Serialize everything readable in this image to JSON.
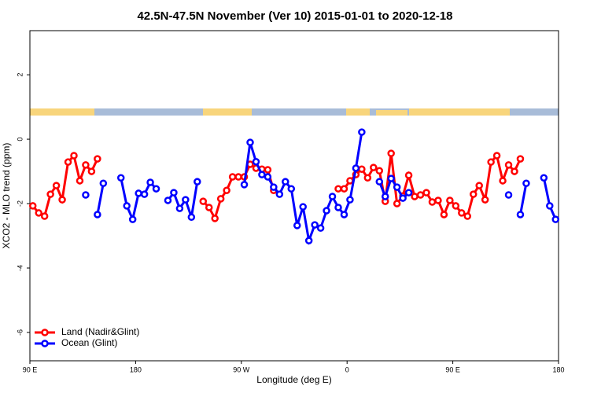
{
  "chart_data": {
    "type": "line",
    "title": "42.5N-47.5N November (Ver 10)   2015-01-01 to 2020-12-18",
    "x_label": "Longitude (deg E)",
    "y_label": "XCO2 - MLO trend (ppm)",
    "xlim": [
      90,
      540
    ],
    "ylim": [
      -6.88,
      3.37
    ],
    "xticks": [
      {
        "value": 90,
        "label": "90 E"
      },
      180,
      {
        "value": 270,
        "label": "90 W"
      },
      {
        "value": 360,
        "label": "0"
      },
      {
        "value": 450,
        "label": "90 E"
      },
      {
        "value": 540,
        "label": "180"
      }
    ],
    "yticks": [
      -6,
      -4,
      -2,
      0,
      2
    ],
    "legend": "bottom-left",
    "x": [
      92.5,
      97.5,
      102.5,
      107.5,
      112.5,
      117.5,
      122.5,
      127.5,
      132.5,
      137.5,
      142.5,
      147.5,
      152.5,
      157.5,
      162.5,
      167.5,
      172.5,
      177.5,
      182.5,
      187.5,
      192.5,
      197.5,
      202.5,
      207.5,
      212.5,
      217.5,
      222.5,
      227.5,
      232.5,
      237.5,
      242.5,
      247.5,
      252.5,
      257.5,
      262.5,
      267.5,
      272.5,
      277.5,
      282.5,
      287.5,
      292.5,
      297.5,
      302.5,
      307.5,
      312.5,
      317.5,
      322.5,
      327.5,
      332.5,
      337.5,
      342.5,
      347.5,
      352.5,
      357.5,
      362.5,
      367.5,
      372.5,
      377.5,
      382.5,
      387.5,
      392.5,
      397.5,
      402.5,
      407.5,
      412.5,
      417.5,
      422.5,
      427.5,
      432.5,
      437.5,
      442.5,
      447.5,
      452.5,
      457.5,
      462.5,
      467.5,
      472.5,
      477.5,
      482.5,
      487.5,
      492.5,
      497.5,
      502.5,
      507.5,
      512.5,
      517.5,
      522.5,
      527.5,
      532.5,
      537.5
    ],
    "series": [
      {
        "name": "Land (Nadir&Glint)",
        "color": "#ff0000",
        "values": [
          -2.07,
          -2.29,
          -2.39,
          -1.71,
          -1.44,
          -1.88,
          -0.71,
          -0.51,
          -1.29,
          -0.8,
          -1.0,
          -0.61,
          null,
          null,
          null,
          null,
          null,
          null,
          null,
          null,
          null,
          null,
          null,
          null,
          null,
          null,
          null,
          null,
          null,
          -1.93,
          -2.12,
          -2.46,
          -1.85,
          -1.59,
          -1.17,
          -1.17,
          -1.17,
          -0.78,
          -0.9,
          -0.93,
          -0.95,
          -1.59,
          null,
          null,
          null,
          null,
          null,
          null,
          null,
          null,
          null,
          null,
          -1.54,
          -1.54,
          -1.29,
          -1.1,
          -0.93,
          -1.2,
          -0.88,
          -0.98,
          -1.93,
          -0.44,
          -2.0,
          -1.76,
          -1.12,
          -1.78,
          -1.73,
          -1.66,
          -1.95,
          -1.9,
          -2.34,
          -1.9,
          -2.07,
          -2.29,
          -2.39,
          -1.71,
          -1.44,
          -1.88,
          -0.71,
          -0.51,
          -1.29,
          -0.8,
          -1.0,
          -0.61,
          null,
          null,
          null,
          null,
          null,
          null
        ]
      },
      {
        "name": "Ocean (Glint)",
        "color": "#0000ff",
        "values": [
          null,
          null,
          null,
          null,
          null,
          null,
          null,
          null,
          null,
          -1.73,
          null,
          -2.34,
          -1.37,
          null,
          null,
          -1.2,
          -2.07,
          -2.49,
          -1.68,
          -1.71,
          -1.34,
          -1.54,
          null,
          -1.9,
          -1.66,
          -2.15,
          -1.88,
          -2.42,
          -1.32,
          null,
          null,
          null,
          null,
          null,
          null,
          null,
          -1.41,
          -0.1,
          -0.7,
          -1.1,
          -1.17,
          -1.49,
          -1.71,
          -1.32,
          -1.54,
          -2.68,
          -2.1,
          -3.15,
          -2.66,
          -2.76,
          -2.22,
          -1.78,
          -2.12,
          -2.34,
          -1.88,
          -0.9,
          0.22,
          null,
          null,
          -1.32,
          -1.78,
          -1.22,
          -1.49,
          -1.83,
          -1.66,
          null,
          null,
          null,
          null,
          null,
          null,
          null,
          null,
          null,
          null,
          null,
          null,
          null,
          null,
          null,
          null,
          -1.73,
          null,
          -2.34,
          -1.37,
          null,
          null,
          -1.2,
          -2.07,
          -2.49
        ]
      }
    ]
  }
}
